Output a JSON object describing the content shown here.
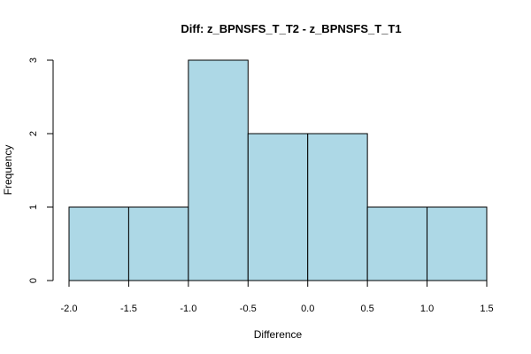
{
  "chart_data": {
    "type": "bar",
    "title": "Diff: z_BPNSFS_T_T2 - z_BPNSFS_T_T1",
    "xlabel": "Difference",
    "ylabel": "Frequency",
    "bin_edges": [
      -2.0,
      -1.5,
      -1.0,
      -0.5,
      0.0,
      0.5,
      1.0,
      1.5
    ],
    "values": [
      1,
      1,
      3,
      2,
      2,
      1,
      1
    ],
    "xlim": [
      -2.0,
      1.5
    ],
    "ylim": [
      0,
      3
    ],
    "x_ticks": [
      "-2.0",
      "-1.5",
      "-1.0",
      "-0.5",
      "0.0",
      "0.5",
      "1.0",
      "1.5"
    ],
    "y_ticks": [
      "0",
      "1",
      "2",
      "3"
    ],
    "bar_color": "#add8e6",
    "grid": false,
    "legend": "none"
  }
}
